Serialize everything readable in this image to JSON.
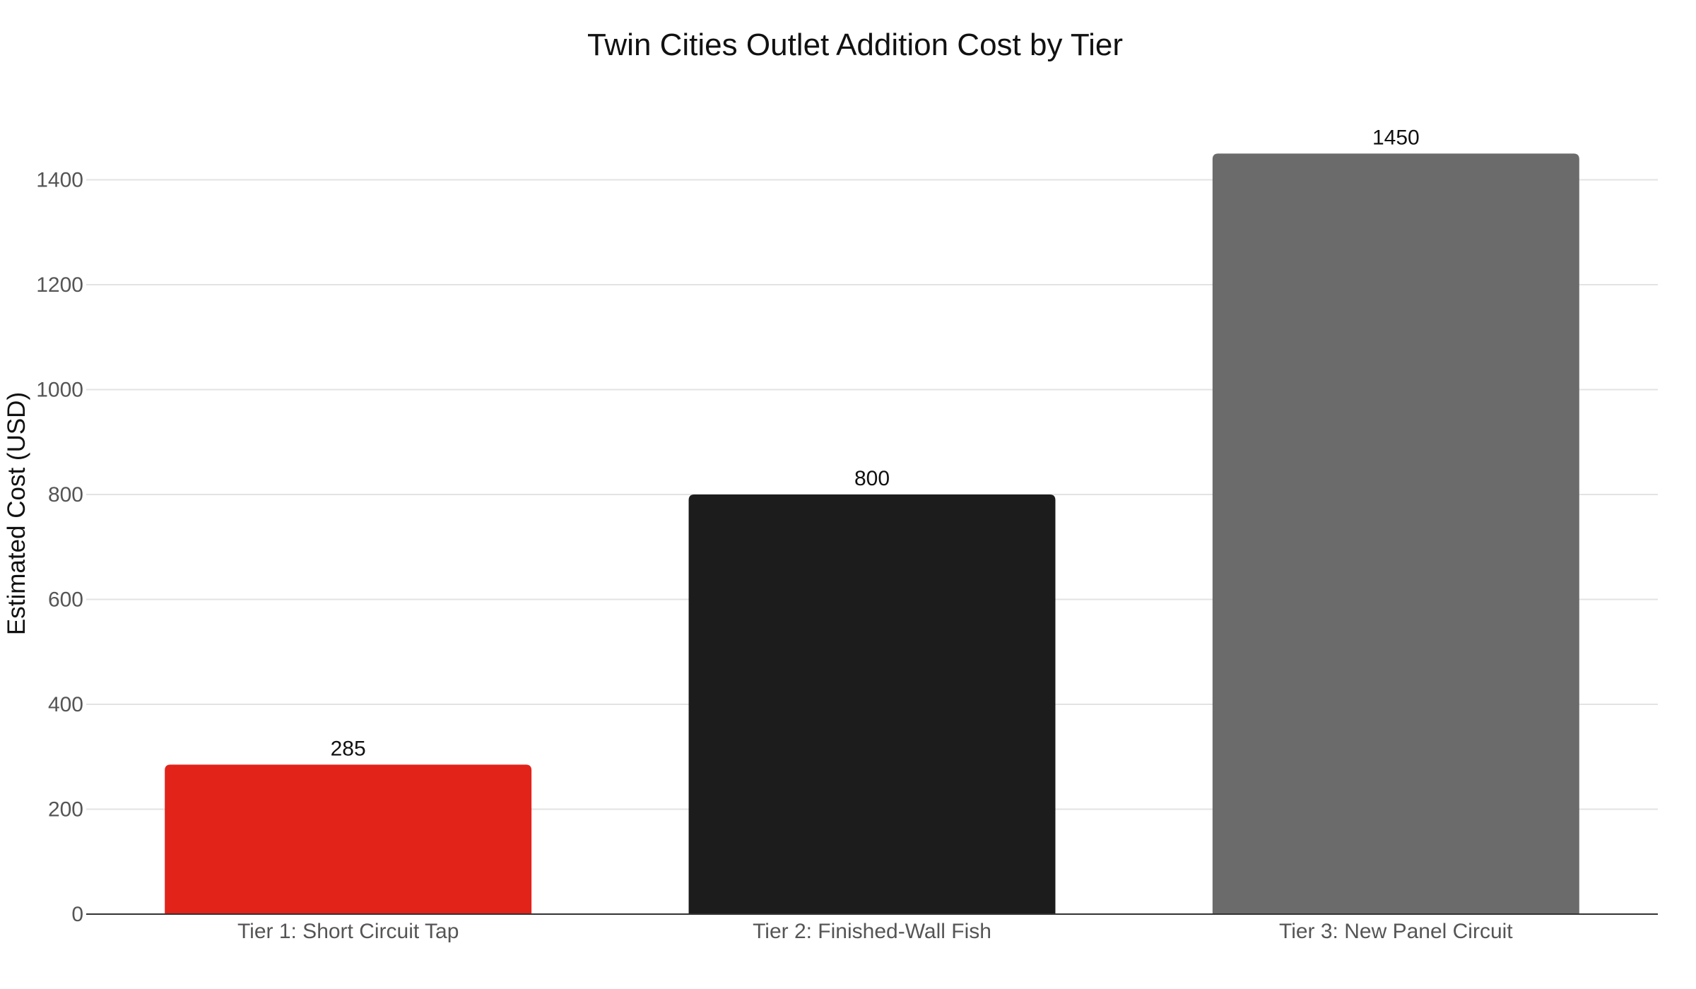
{
  "chart_data": {
    "type": "bar",
    "title": "Twin Cities Outlet Addition Cost by Tier",
    "xlabel": "",
    "ylabel": "Estimated Cost (USD)",
    "categories": [
      "Tier 1: Short Circuit Tap",
      "Tier 2: Finished-Wall Fish",
      "Tier 3: New Panel Circuit"
    ],
    "values": [
      285,
      800,
      1450
    ],
    "data_labels": [
      "285",
      "800",
      "1450"
    ],
    "colors": [
      "#e2231a",
      "#1c1c1c",
      "#6b6b6b"
    ],
    "ylim": [
      0,
      1530
    ],
    "yticks": [
      0,
      200,
      400,
      600,
      800,
      1000,
      1200,
      1400
    ],
    "ytick_labels": [
      "0",
      "200",
      "400",
      "600",
      "800",
      "1000",
      "1200",
      "1400"
    ],
    "grid": true,
    "legend": "none"
  }
}
